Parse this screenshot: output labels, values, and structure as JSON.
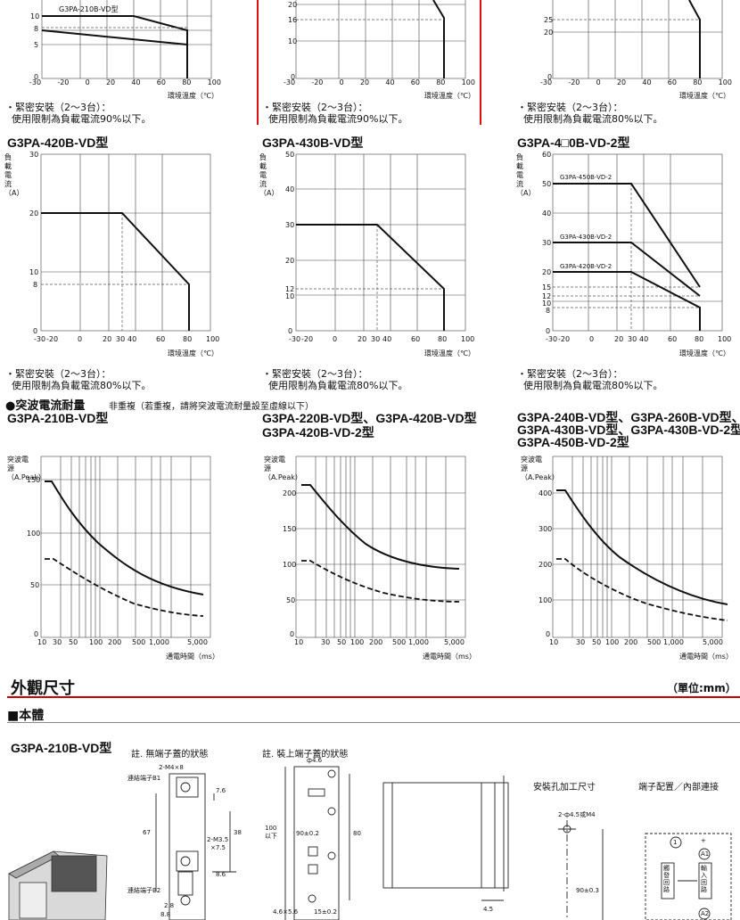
{
  "derating": {
    "temp_ticks": [
      "-30",
      "-20",
      "0",
      "20",
      "40",
      "60",
      "80",
      "100"
    ],
    "xlabel": "環境溫度（℃）",
    "ylabel": "負載電流（A）",
    "top": [
      {
        "legend": "G3PA-210B-VD型",
        "note": "・緊密安裝（2〜3台）：\n  使用限制為負載電流90%以下。",
        "y_ticks": [
          "10",
          "8",
          "5",
          "0"
        ],
        "points": [
          [
            -30,
            10
          ],
          [
            40,
            10
          ],
          [
            80,
            8
          ]
        ],
        "points2": [
          [
            -30,
            8
          ],
          [
            80,
            5
          ]
        ]
      },
      {
        "note": "・緊密安裝（2〜3台）：\n  使用限制為負載電流90%以下。",
        "y_ticks": [
          "20",
          "16",
          "10",
          "0"
        ]
      },
      {
        "note": "・緊密安裝（2〜3台）：\n  使用限制為負載電流80%以下。",
        "y_ticks": [
          "25",
          "20",
          "0"
        ]
      }
    ],
    "middle": [
      {
        "model": "G3PA-420B-VD型",
        "y_ticks": [
          "30",
          "20",
          "10",
          "8",
          "0"
        ],
        "x_ticks": [
          "-30",
          "-20",
          "0",
          "20",
          "30",
          "40",
          "60",
          "80",
          "100"
        ],
        "note": "・緊密安裝（2〜3台）：\n  使用限制為負載電流80%以下。"
      },
      {
        "model": "G3PA-430B-VD型",
        "y_ticks": [
          "50",
          "40",
          "30",
          "20",
          "12",
          "10",
          "0"
        ],
        "x_ticks": [
          "-30",
          "-20",
          "0",
          "20",
          "30",
          "40",
          "60",
          "80",
          "100"
        ],
        "note": "・緊密安裝（2〜3台）：\n  使用限制為負載電流80%以下。"
      },
      {
        "model": "G3PA-4□0B-VD-2型",
        "y_ticks": [
          "60",
          "50",
          "40",
          "30",
          "20",
          "15",
          "12",
          "10",
          "8",
          "0"
        ],
        "x_ticks": [
          "-30",
          "-20",
          "0",
          "20",
          "30",
          "40",
          "60",
          "80",
          "100"
        ],
        "series_labels": [
          "G3PA-450B-VD-2",
          "G3PA-430B-VD-2",
          "G3PA-420B-VD-2"
        ],
        "note": "・緊密安裝（2〜3台）：\n  使用限制為負載電流80%以下。"
      }
    ]
  },
  "surge": {
    "heading": "●突波電流耐量",
    "heading_note": "非重複（若重複，請將突波電流耐量設至虛線以下）",
    "ylabel": "突波電源（A.Peak）",
    "xlabel": "通電時間（ms）",
    "x_ticks": [
      "10",
      "30",
      "50",
      "100",
      "200",
      "500",
      "1,000",
      "5,000"
    ],
    "charts": [
      {
        "model": "G3PA-210B-VD型",
        "y_ticks": [
          "150",
          "100",
          "50",
          "0"
        ]
      },
      {
        "model": "G3PA-220B-VD型、G3PA-420B-VD型\nG3PA-420B-VD-2型",
        "y_ticks": [
          "200",
          "150",
          "100",
          "50",
          "0"
        ]
      },
      {
        "model": "G3PA-240B-VD型、G3PA-260B-VD型、\nG3PA-430B-VD型、G3PA-430B-VD-2型、\nG3PA-450B-VD-2型",
        "y_ticks": [
          "400",
          "300",
          "200",
          "100",
          "0"
        ]
      }
    ]
  },
  "dimensions": {
    "title": "外觀尺寸",
    "unit": "（單位:mm）",
    "body_heading": "■本體",
    "model": "G3PA-210B-VD型",
    "note1": "註. 無端子蓋的狀態",
    "note2": "註. 裝上端子蓋的狀態",
    "mount_title": "安裝孔加工尺寸",
    "terminal_title": "端子配置／內部連接",
    "labels": {
      "m4": "2-M4×8",
      "b1": "連結端子B1",
      "b2": "連結端子B2",
      "d76": "7.6",
      "d67": "67",
      "d38": "38",
      "m35": "2-M3.5",
      "x75": "×7.5",
      "d86": "8.6",
      "d28": "2.8",
      "d88": "8.8",
      "phi46": "ф4.6",
      "d100": "100\n以下",
      "d90": "90±0.2",
      "d80": "80",
      "d4656": "4.6×5.6",
      "d15": "15±0.2",
      "d45": "4.5",
      "hole": "2-ф4.5或M4",
      "d903": "90±0.3",
      "A1": "A1",
      "A2": "A2",
      "plus": "+",
      "one": "1",
      "circuit1": "輸入回路",
      "circuit2": "觸發回路"
    }
  }
}
